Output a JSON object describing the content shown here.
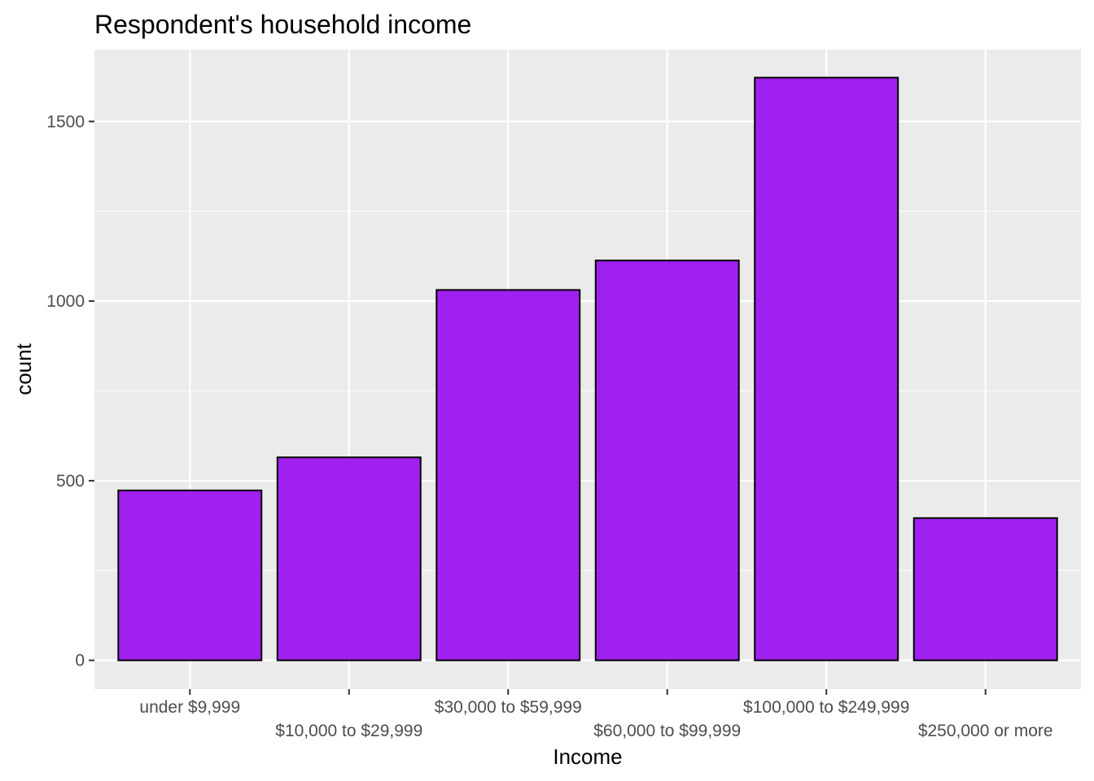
{
  "chart_data": {
    "type": "bar",
    "title": "Respondent's household income",
    "xlabel": "Income",
    "ylabel": "count",
    "categories": [
      "under $9,999",
      "$10,000 to $29,999",
      "$30,000 to $59,999",
      "$60,000 to $99,999",
      "$100,000 to $249,999",
      "$250,000 or more"
    ],
    "values": [
      473,
      565,
      1031,
      1113,
      1622,
      396
    ],
    "ylim": [
      -80,
      1700
    ],
    "yticks": [
      0,
      500,
      1000,
      1500
    ],
    "ytick_labels": [
      "0",
      "500",
      "1000",
      "1500"
    ],
    "grid": true,
    "colors": {
      "bar_fill": "#a020f0",
      "bar_stroke": "#000000",
      "panel_background": "#ebebeb",
      "grid": "#ffffff"
    }
  }
}
